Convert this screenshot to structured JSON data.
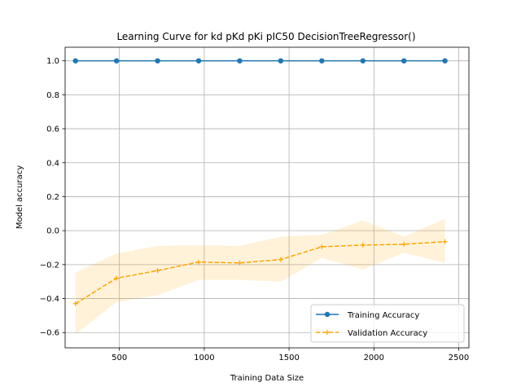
{
  "chart_data": {
    "type": "line",
    "title": "Learning Curve for kd pKd pKi pIC50 DecisionTreeRegressor()",
    "xlabel": "Training Data Size",
    "ylabel": "Model accuracy",
    "xlim": [
      180,
      2560
    ],
    "ylim": [
      -0.69,
      1.08
    ],
    "xticks": [
      500,
      1000,
      1500,
      2000,
      2500
    ],
    "yticks": [
      -0.6,
      -0.4,
      -0.2,
      0.0,
      0.2,
      0.4,
      0.6,
      0.8,
      1.0
    ],
    "xtick_labels": [
      "500",
      "1000",
      "1500",
      "2000",
      "2500"
    ],
    "ytick_labels": [
      "−0.6",
      "−0.4",
      "−0.2",
      "0.0",
      "0.2",
      "0.4",
      "0.6",
      "0.8",
      "1.0"
    ],
    "grid": true,
    "legend_position": "lower-right",
    "x": [
      241,
      483,
      725,
      967,
      1209,
      1451,
      1693,
      1935,
      2177,
      2419
    ],
    "series": [
      {
        "name": "Training Accuracy",
        "color": "#1f77b4",
        "line_style": "solid",
        "marker": "circle",
        "values": [
          1.0,
          1.0,
          1.0,
          1.0,
          1.0,
          1.0,
          1.0,
          1.0,
          1.0,
          1.0
        ],
        "band_lower": [
          1.0,
          1.0,
          1.0,
          1.0,
          1.0,
          1.0,
          1.0,
          1.0,
          1.0,
          1.0
        ],
        "band_upper": [
          1.0,
          1.0,
          1.0,
          1.0,
          1.0,
          1.0,
          1.0,
          1.0,
          1.0,
          1.0
        ]
      },
      {
        "name": "Validation Accuracy",
        "color": "#ffa500",
        "line_style": "dashed",
        "marker": "plus",
        "values": [
          -0.43,
          -0.28,
          -0.235,
          -0.185,
          -0.19,
          -0.17,
          -0.095,
          -0.085,
          -0.08,
          -0.065
        ],
        "band_lower": [
          -0.61,
          -0.42,
          -0.38,
          -0.29,
          -0.29,
          -0.3,
          -0.16,
          -0.23,
          -0.13,
          -0.19
        ],
        "band_upper": [
          -0.245,
          -0.135,
          -0.09,
          -0.085,
          -0.09,
          -0.035,
          -0.025,
          0.06,
          -0.035,
          0.07
        ]
      }
    ]
  }
}
